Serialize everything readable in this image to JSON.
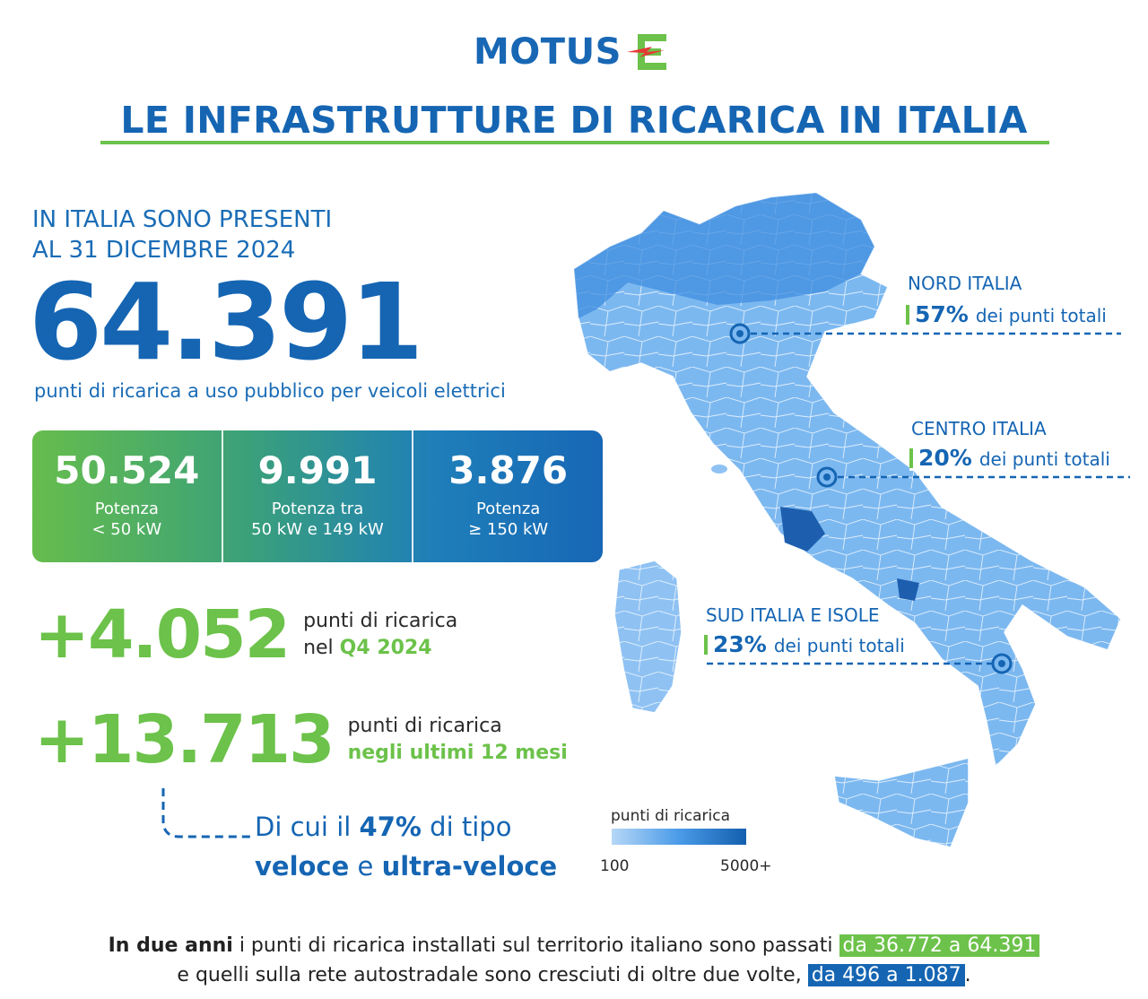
{
  "brand": {
    "name": "MOTUS-E",
    "logo_text": "MOTUS",
    "logo_letter": "E"
  },
  "title": "LE INFRASTRUTTURE DI RICARICA IN ITALIA",
  "intro": {
    "line1": "IN ITALIA SONO PRESENTI",
    "line2": "AL 31 DICEMBRE 2024"
  },
  "total": {
    "value": "64.391",
    "description": "punti di ricarica a uso pubblico per veicoli elettrici"
  },
  "power_breakdown": [
    {
      "value": "50.524",
      "label_line1": "Potenza",
      "label_line2": "< 50 kW"
    },
    {
      "value": "9.991",
      "label_line1": "Potenza tra",
      "label_line2": "50 kW e 149 kW"
    },
    {
      "value": "3.876",
      "label_line1": "Potenza",
      "label_line2": "≥ 150 kW"
    }
  ],
  "growth": [
    {
      "value": "+4.052",
      "line1": "punti di ricarica",
      "line2_prefix": "nel ",
      "line2_highlight": "Q4 2024"
    },
    {
      "value": "+13.713",
      "line1": "punti di ricarica",
      "line2_prefix": "",
      "line2_highlight": "negli ultimi 12 mesi"
    }
  ],
  "fast_note": {
    "prefix": "Di cui il ",
    "pct": "47%",
    "mid": " di tipo",
    "fast": "veloce",
    "and": " e ",
    "ultra": "ultra-veloce"
  },
  "regions": [
    {
      "name": "NORD ITALIA",
      "pct": "57%",
      "suffix": "dei punti totali"
    },
    {
      "name": "CENTRO ITALIA",
      "pct": "20%",
      "suffix": "dei punti totali"
    },
    {
      "name": "SUD ITALIA E ISOLE",
      "pct": "23%",
      "suffix": "dei punti totali"
    }
  ],
  "legend": {
    "title": "punti di ricarica",
    "min": "100",
    "max": "5000+",
    "color_low": "#b6d7f7",
    "color_high": "#135fae"
  },
  "footer": {
    "line1_bold": "In due anni",
    "line1_text": " i punti di ricarica installati sul territorio italiano sono passati ",
    "line1_highlight": "da 36.772 a 64.391",
    "line2_text": "e quelli sulla rete autostradale sono cresciuti di oltre due volte, ",
    "line2_highlight": "da 496 a 1.087",
    "line2_end": "."
  },
  "colors": {
    "blue": "#1565b3",
    "green": "#6cc24a",
    "map_light": "#8fc2f3",
    "map_dark": "#1d6fc4",
    "logo_red": "#e53935"
  }
}
